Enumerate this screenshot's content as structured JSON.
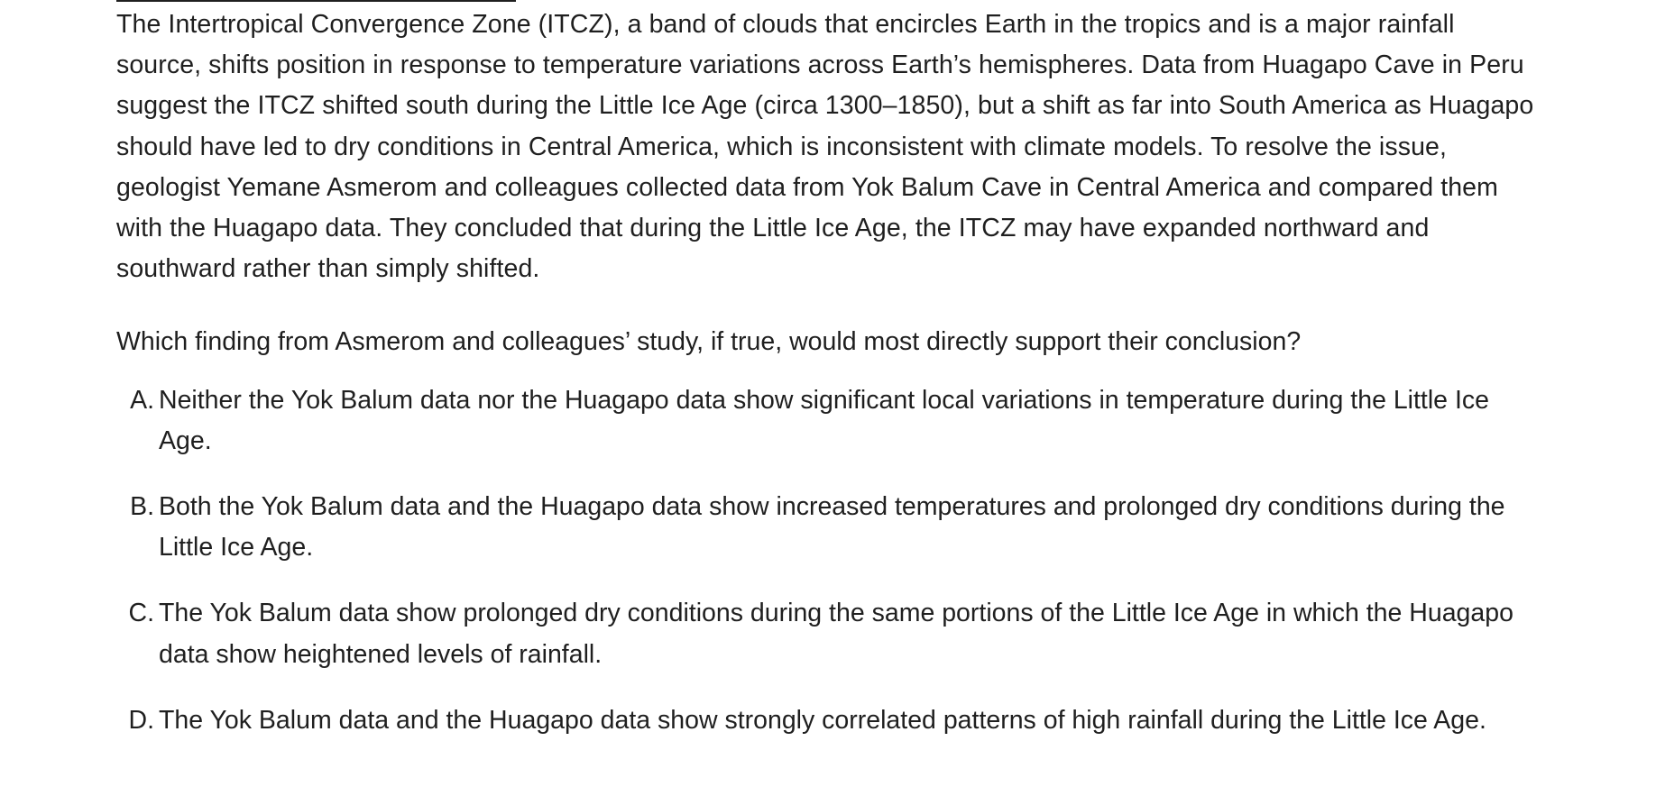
{
  "passage": "The Intertropical Convergence Zone (ITCZ), a band of clouds that encircles Earth in the tropics and is a major rainfall source, shifts position in response to temperature variations across Earth’s hemispheres. Data from Huagapo Cave in Peru suggest the ITCZ shifted south during the Little Ice Age (circa 1300–1850), but a shift as far into South America as Huagapo should have led to dry conditions in Central America, which is inconsistent with climate models. To resolve the issue, geologist Yemane Asmerom and colleagues collected data from Yok Balum Cave in Central America and compared them with the Huagapo data. They concluded that during the Little Ice Age, the ITCZ may have expanded northward and southward rather than simply shifted.",
  "question": "Which finding from Asmerom and colleagues’ study, if true, would most directly support their conclusion?",
  "choices": [
    {
      "letter": "A.",
      "text": "Neither the Yok Balum data nor the Huagapo data show significant local variations in temperature during the Little Ice Age."
    },
    {
      "letter": "B.",
      "text": "Both the Yok Balum data and the Huagapo data show increased temperatures and prolonged dry conditions during the Little Ice Age."
    },
    {
      "letter": "C.",
      "text": "The Yok Balum data show prolonged dry conditions during the same portions of the Little Ice Age in which the Huagapo data show heightened levels of rainfall."
    },
    {
      "letter": "D.",
      "text": "The Yok Balum data and the Huagapo data show strongly correlated patterns of high rainfall during the Little Ice Age."
    }
  ]
}
